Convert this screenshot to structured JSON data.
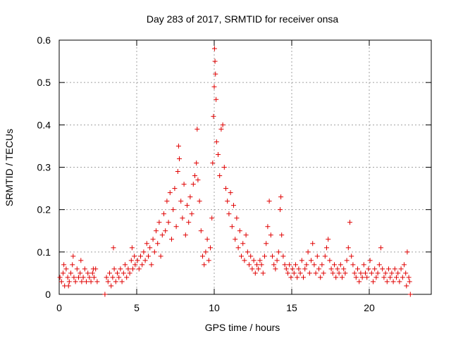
{
  "chart_data": {
    "type": "scatter",
    "title": "Day 283 of 2017, SRMTID for receiver onsa",
    "xlabel": "GPS time / hours",
    "ylabel": "SRMTID / TECUs",
    "xlim": [
      0,
      24
    ],
    "ylim": [
      0,
      0.6
    ],
    "xticks": [
      0,
      5,
      10,
      15,
      20
    ],
    "yticks": [
      0,
      0.1,
      0.2,
      0.3,
      0.4,
      0.5,
      0.6
    ],
    "xtick_labels": [
      "0",
      "5",
      "10",
      "15",
      "20"
    ],
    "ytick_labels": [
      "0",
      "0.1",
      "0.2",
      "0.3",
      "0.4",
      "0.5",
      "0.6"
    ],
    "grid": true,
    "marker": "+",
    "color": "#e00000",
    "series": [
      {
        "name": "SRMTID",
        "points": [
          [
            0.05,
            0.04
          ],
          [
            0.15,
            0.03
          ],
          [
            0.25,
            0.05
          ],
          [
            0.35,
            0.02
          ],
          [
            0.45,
            0.06
          ],
          [
            0.55,
            0.04
          ],
          [
            0.65,
            0.03
          ],
          [
            0.75,
            0.05
          ],
          [
            0.85,
            0.07
          ],
          [
            0.95,
            0.04
          ],
          [
            1.05,
            0.03
          ],
          [
            1.15,
            0.06
          ],
          [
            1.25,
            0.04
          ],
          [
            1.35,
            0.05
          ],
          [
            1.45,
            0.03
          ],
          [
            1.55,
            0.04
          ],
          [
            1.65,
            0.06
          ],
          [
            1.75,
            0.03
          ],
          [
            1.85,
            0.05
          ],
          [
            1.95,
            0.04
          ],
          [
            2.05,
            0.03
          ],
          [
            2.15,
            0.05
          ],
          [
            2.25,
            0.04
          ],
          [
            2.35,
            0.06
          ],
          [
            2.45,
            0.03
          ],
          [
            0.3,
            0.07
          ],
          [
            0.9,
            0.09
          ],
          [
            1.4,
            0.08
          ],
          [
            2.2,
            0.06
          ],
          [
            0.6,
            0.02
          ],
          [
            2.95,
            0.0
          ],
          [
            3.05,
            0.04
          ],
          [
            3.15,
            0.03
          ],
          [
            3.25,
            0.05
          ],
          [
            3.35,
            0.02
          ],
          [
            3.45,
            0.04
          ],
          [
            3.55,
            0.06
          ],
          [
            3.65,
            0.03
          ],
          [
            3.75,
            0.05
          ],
          [
            3.85,
            0.04
          ],
          [
            3.95,
            0.06
          ],
          [
            4.05,
            0.03
          ],
          [
            4.15,
            0.05
          ],
          [
            4.25,
            0.07
          ],
          [
            4.35,
            0.04
          ],
          [
            4.45,
            0.06
          ],
          [
            4.55,
            0.05
          ],
          [
            4.65,
            0.08
          ],
          [
            4.75,
            0.06
          ],
          [
            4.85,
            0.09
          ],
          [
            3.5,
            0.11
          ],
          [
            4.7,
            0.11
          ],
          [
            4.9,
            0.07
          ],
          [
            5.05,
            0.08
          ],
          [
            5.15,
            0.06
          ],
          [
            5.25,
            0.09
          ],
          [
            5.35,
            0.07
          ],
          [
            5.45,
            0.1
          ],
          [
            5.55,
            0.08
          ],
          [
            5.65,
            0.12
          ],
          [
            5.75,
            0.09
          ],
          [
            5.85,
            0.11
          ],
          [
            5.95,
            0.07
          ],
          [
            6.05,
            0.13
          ],
          [
            6.15,
            0.1
          ],
          [
            6.25,
            0.15
          ],
          [
            6.35,
            0.12
          ],
          [
            6.45,
            0.17
          ],
          [
            6.55,
            0.09
          ],
          [
            6.65,
            0.14
          ],
          [
            6.75,
            0.19
          ],
          [
            6.85,
            0.15
          ],
          [
            6.95,
            0.22
          ],
          [
            7.05,
            0.17
          ],
          [
            7.15,
            0.24
          ],
          [
            7.25,
            0.13
          ],
          [
            7.35,
            0.2
          ],
          [
            7.45,
            0.25
          ],
          [
            7.55,
            0.16
          ],
          [
            7.65,
            0.29
          ],
          [
            7.7,
            0.35
          ],
          [
            7.75,
            0.32
          ],
          [
            7.85,
            0.22
          ],
          [
            7.95,
            0.18
          ],
          [
            8.05,
            0.26
          ],
          [
            8.15,
            0.14
          ],
          [
            8.25,
            0.21
          ],
          [
            8.35,
            0.17
          ],
          [
            8.45,
            0.23
          ],
          [
            8.55,
            0.19
          ],
          [
            8.65,
            0.26
          ],
          [
            8.75,
            0.28
          ],
          [
            8.85,
            0.31
          ],
          [
            8.9,
            0.39
          ],
          [
            8.95,
            0.27
          ],
          [
            9.05,
            0.22
          ],
          [
            9.15,
            0.15
          ],
          [
            9.25,
            0.09
          ],
          [
            9.35,
            0.07
          ],
          [
            9.45,
            0.1
          ],
          [
            9.55,
            0.13
          ],
          [
            9.65,
            0.08
          ],
          [
            9.75,
            0.11
          ],
          [
            9.85,
            0.18
          ],
          [
            9.9,
            0.31
          ],
          [
            9.95,
            0.42
          ],
          [
            10.0,
            0.49
          ],
          [
            10.02,
            0.58
          ],
          [
            10.05,
            0.55
          ],
          [
            10.08,
            0.52
          ],
          [
            10.12,
            0.46
          ],
          [
            10.15,
            0.36
          ],
          [
            10.25,
            0.33
          ],
          [
            10.35,
            0.28
          ],
          [
            10.45,
            0.39
          ],
          [
            10.55,
            0.4
          ],
          [
            10.65,
            0.3
          ],
          [
            10.75,
            0.25
          ],
          [
            10.85,
            0.22
          ],
          [
            10.95,
            0.19
          ],
          [
            11.05,
            0.24
          ],
          [
            11.15,
            0.16
          ],
          [
            11.25,
            0.21
          ],
          [
            11.35,
            0.13
          ],
          [
            11.45,
            0.18
          ],
          [
            11.55,
            0.11
          ],
          [
            11.65,
            0.15
          ],
          [
            11.75,
            0.09
          ],
          [
            11.85,
            0.12
          ],
          [
            11.95,
            0.08
          ],
          [
            12.05,
            0.14
          ],
          [
            12.15,
            0.1
          ],
          [
            12.25,
            0.07
          ],
          [
            12.35,
            0.09
          ],
          [
            12.45,
            0.06
          ],
          [
            12.55,
            0.08
          ],
          [
            12.65,
            0.05
          ],
          [
            12.75,
            0.07
          ],
          [
            12.85,
            0.06
          ],
          [
            12.95,
            0.08
          ],
          [
            13.05,
            0.07
          ],
          [
            13.15,
            0.05
          ],
          [
            13.25,
            0.09
          ],
          [
            13.35,
            0.12
          ],
          [
            13.45,
            0.16
          ],
          [
            13.55,
            0.22
          ],
          [
            13.65,
            0.14
          ],
          [
            13.75,
            0.09
          ],
          [
            13.85,
            0.07
          ],
          [
            13.95,
            0.06
          ],
          [
            14.05,
            0.08
          ],
          [
            14.15,
            0.1
          ],
          [
            14.25,
            0.2
          ],
          [
            14.3,
            0.23
          ],
          [
            14.35,
            0.14
          ],
          [
            14.45,
            0.09
          ],
          [
            14.55,
            0.07
          ],
          [
            14.65,
            0.06
          ],
          [
            14.75,
            0.05
          ],
          [
            14.85,
            0.07
          ],
          [
            14.95,
            0.04
          ],
          [
            15.05,
            0.06
          ],
          [
            15.15,
            0.05
          ],
          [
            15.25,
            0.07
          ],
          [
            15.35,
            0.04
          ],
          [
            15.45,
            0.06
          ],
          [
            15.55,
            0.05
          ],
          [
            15.65,
            0.08
          ],
          [
            15.75,
            0.04
          ],
          [
            15.85,
            0.06
          ],
          [
            15.95,
            0.07
          ],
          [
            16.05,
            0.1
          ],
          [
            16.15,
            0.05
          ],
          [
            16.25,
            0.08
          ],
          [
            16.35,
            0.12
          ],
          [
            16.45,
            0.07
          ],
          [
            16.55,
            0.05
          ],
          [
            16.65,
            0.09
          ],
          [
            16.75,
            0.06
          ],
          [
            16.85,
            0.04
          ],
          [
            16.95,
            0.07
          ],
          [
            17.05,
            0.05
          ],
          [
            17.15,
            0.09
          ],
          [
            17.25,
            0.11
          ],
          [
            17.35,
            0.13
          ],
          [
            17.45,
            0.08
          ],
          [
            17.55,
            0.06
          ],
          [
            17.65,
            0.05
          ],
          [
            17.75,
            0.07
          ],
          [
            17.85,
            0.04
          ],
          [
            17.95,
            0.06
          ],
          [
            18.05,
            0.05
          ],
          [
            18.15,
            0.07
          ],
          [
            18.25,
            0.04
          ],
          [
            18.35,
            0.06
          ],
          [
            18.45,
            0.05
          ],
          [
            18.55,
            0.08
          ],
          [
            18.65,
            0.11
          ],
          [
            18.75,
            0.17
          ],
          [
            18.85,
            0.09
          ],
          [
            18.95,
            0.07
          ],
          [
            19.05,
            0.05
          ],
          [
            19.15,
            0.04
          ],
          [
            19.25,
            0.06
          ],
          [
            19.35,
            0.03
          ],
          [
            19.45,
            0.05
          ],
          [
            19.55,
            0.04
          ],
          [
            19.65,
            0.07
          ],
          [
            19.75,
            0.05
          ],
          [
            19.85,
            0.04
          ],
          [
            19.95,
            0.06
          ],
          [
            20.05,
            0.08
          ],
          [
            20.15,
            0.05
          ],
          [
            20.25,
            0.03
          ],
          [
            20.35,
            0.06
          ],
          [
            20.45,
            0.04
          ],
          [
            20.55,
            0.05
          ],
          [
            20.65,
            0.07
          ],
          [
            20.75,
            0.11
          ],
          [
            20.85,
            0.06
          ],
          [
            20.95,
            0.04
          ],
          [
            21.05,
            0.05
          ],
          [
            21.15,
            0.03
          ],
          [
            21.25,
            0.06
          ],
          [
            21.35,
            0.04
          ],
          [
            21.45,
            0.05
          ],
          [
            21.55,
            0.03
          ],
          [
            21.65,
            0.06
          ],
          [
            21.75,
            0.04
          ],
          [
            21.85,
            0.05
          ],
          [
            21.95,
            0.03
          ],
          [
            22.05,
            0.06
          ],
          [
            22.15,
            0.04
          ],
          [
            22.25,
            0.07
          ],
          [
            22.35,
            0.05
          ],
          [
            22.45,
            0.1
          ],
          [
            22.55,
            0.04
          ],
          [
            22.65,
            0.0
          ],
          [
            22.6,
            0.03
          ],
          [
            22.4,
            0.02
          ]
        ]
      }
    ]
  }
}
